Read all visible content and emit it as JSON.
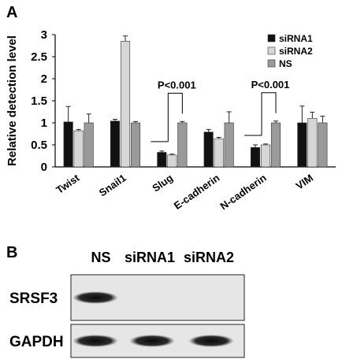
{
  "panels": {
    "a": "A",
    "b": "B"
  },
  "chart_data": {
    "type": "bar",
    "ylabel": "Relative detection level",
    "xlabel": "",
    "ylim": [
      0,
      3
    ],
    "yticks": [
      "0",
      "0.5",
      "1",
      "1.5",
      "2",
      "2.5",
      "3"
    ],
    "categories": [
      "Twist",
      "Snail1",
      "Slug",
      "E-cadherin",
      "N-cadherin",
      "VIM"
    ],
    "series": [
      {
        "name": "siRNA1",
        "color": "#111111",
        "values": [
          1.02,
          1.04,
          0.33,
          0.79,
          0.44,
          1.0
        ],
        "errors": [
          0.35,
          0.04,
          0.03,
          0.06,
          0.06,
          0.38
        ]
      },
      {
        "name": "siRNA2",
        "color": "#d6d6d6",
        "values": [
          0.82,
          2.85,
          0.27,
          0.64,
          0.5,
          1.1
        ],
        "errors": [
          0.03,
          0.12,
          0.02,
          0.03,
          0.02,
          0.14
        ]
      },
      {
        "name": "NS",
        "color": "#9a9a9a",
        "values": [
          1.0,
          1.0,
          1.0,
          1.0,
          1.0,
          1.0
        ],
        "errors": [
          0.2,
          0.03,
          0.03,
          0.25,
          0.04,
          0.15
        ]
      }
    ],
    "grid": false,
    "legend_position": "top-right",
    "annotations": [
      {
        "text": "P<0.001",
        "category": "Slug"
      },
      {
        "text": "P<0.001",
        "category": "N-cadherin"
      }
    ]
  },
  "blot": {
    "lanes": [
      "NS",
      "siRNA1",
      "siRNA2"
    ],
    "rows": [
      {
        "label": "SRSF3",
        "band_intensity": [
          1,
          0,
          0
        ]
      },
      {
        "label": "GAPDH",
        "band_intensity": [
          1,
          1,
          1
        ]
      }
    ]
  }
}
